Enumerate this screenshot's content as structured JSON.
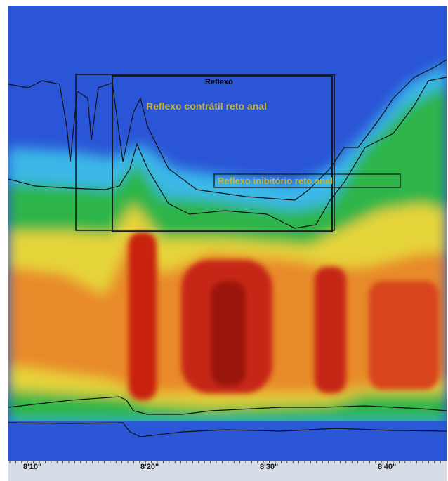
{
  "chart_data": {
    "type": "heatmap",
    "title": "",
    "xlabel": "",
    "ylabel": "",
    "x_ticks": [
      "8'10\"",
      "8'20\"",
      "8'30\"",
      "8'40\""
    ],
    "xlim_seconds": [
      487,
      527
    ],
    "annotations": {
      "main_box": "Reflexo",
      "contractile": "Reflexo contrátil reto anal",
      "inhibitory": "Reflexo inibitório reto anal"
    },
    "colors": {
      "low": "#2a55d6",
      "mid_low": "#35b0e6",
      "mid": "#2fb54a",
      "mid_high": "#e8d73a",
      "high": "#cc1f10",
      "annotation_text": "#c8b430",
      "box_label": "#000000"
    }
  }
}
